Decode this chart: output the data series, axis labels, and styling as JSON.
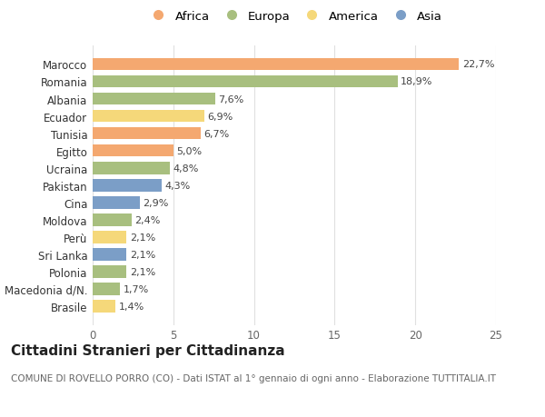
{
  "countries": [
    "Brasile",
    "Macedonia d/N.",
    "Polonia",
    "Sri Lanka",
    "Perù",
    "Moldova",
    "Cina",
    "Pakistan",
    "Ucraina",
    "Egitto",
    "Tunisia",
    "Ecuador",
    "Albania",
    "Romania",
    "Marocco"
  ],
  "values": [
    1.4,
    1.7,
    2.1,
    2.1,
    2.1,
    2.4,
    2.9,
    4.3,
    4.8,
    5.0,
    6.7,
    6.9,
    7.6,
    18.9,
    22.7
  ],
  "labels": [
    "1,4%",
    "1,7%",
    "2,1%",
    "2,1%",
    "2,1%",
    "2,4%",
    "2,9%",
    "4,3%",
    "4,8%",
    "5,0%",
    "6,7%",
    "6,9%",
    "7,6%",
    "18,9%",
    "22,7%"
  ],
  "continents": [
    "America",
    "Europa",
    "Europa",
    "Asia",
    "America",
    "Europa",
    "Asia",
    "Asia",
    "Europa",
    "Africa",
    "Africa",
    "America",
    "Europa",
    "Europa",
    "Africa"
  ],
  "colors": {
    "Africa": "#F4A870",
    "Europa": "#A8BF7F",
    "America": "#F5D87A",
    "Asia": "#7B9EC7"
  },
  "legend_order": [
    "Africa",
    "Europa",
    "America",
    "Asia"
  ],
  "title": "Cittadini Stranieri per Cittadinanza",
  "subtitle": "COMUNE DI ROVELLO PORRO (CO) - Dati ISTAT al 1° gennaio di ogni anno - Elaborazione TUTTITALIA.IT",
  "xlim": [
    0,
    25
  ],
  "xticks": [
    0,
    5,
    10,
    15,
    20,
    25
  ],
  "background_color": "#ffffff",
  "grid_color": "#e0e0e0",
  "bar_height": 0.72,
  "title_fontsize": 11,
  "subtitle_fontsize": 7.5,
  "label_fontsize": 8,
  "tick_fontsize": 8.5,
  "legend_fontsize": 9.5
}
